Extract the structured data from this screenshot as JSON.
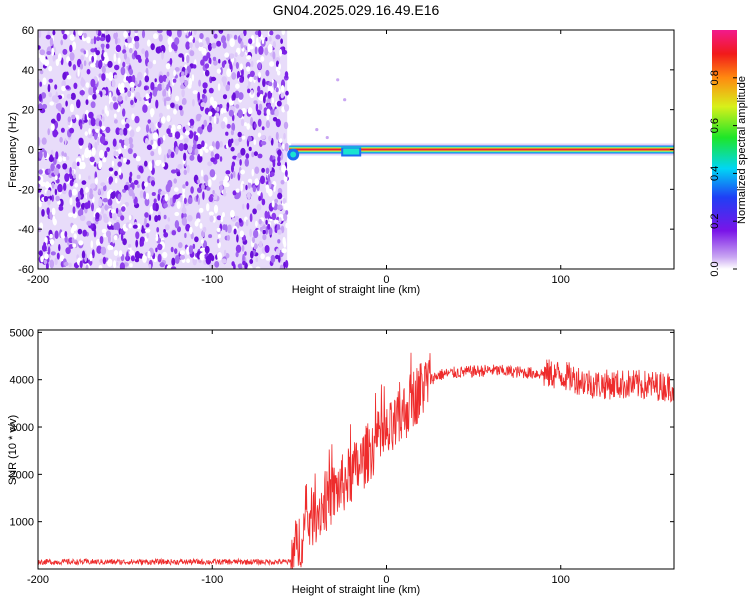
{
  "figure": {
    "title": "GN04.2025.029.16.49.E16"
  },
  "colors": {
    "snr_line": "#ee2c2c",
    "scatter_noise": "#8a2be2",
    "band_core": "#e81e3a"
  },
  "chart_data": [
    {
      "type": "heatmap",
      "title": "GN04.2025.029.16.49.E16",
      "xlabel": "Height of straight line (km)",
      "ylabel": "Frequency (Hz)",
      "xlim": [
        -200,
        165
      ],
      "ylim": [
        -60,
        60
      ],
      "x_ticks": [
        -200,
        -100,
        0,
        100
      ],
      "y_ticks": [
        -60,
        -40,
        -20,
        0,
        20,
        40,
        60
      ],
      "colorbar": {
        "label": "Normalized spectral amplitude",
        "range": [
          0,
          1
        ],
        "ticks": [
          "0.0",
          "0.2",
          "0.4",
          "0.6",
          "0.8"
        ],
        "scheme": "rainbow (violet → blue → cyan → green → yellow → red → magenta)"
      },
      "regions": [
        {
          "description": "broadband noise",
          "x_range": [
            -200,
            -57
          ],
          "freq_range": [
            -60,
            60
          ],
          "amplitude": 0.1
        },
        {
          "description": "narrow carrier band",
          "x_range": [
            -57,
            165
          ],
          "freq_center": 0,
          "amplitude": 0.95
        }
      ],
      "grid": false
    },
    {
      "type": "line",
      "xlabel": "Height of straight line (km)",
      "ylabel": "SNR (10 * v/v)",
      "xlim": [
        -200,
        165
      ],
      "ylim": [
        0,
        5050
      ],
      "x_ticks": [
        -200,
        -100,
        0,
        100
      ],
      "y_ticks": [
        1000,
        2000,
        3000,
        4000,
        5000
      ],
      "series": [
        {
          "x": [
            -200,
            -150,
            -100,
            -60,
            -55,
            -50,
            -45,
            -40,
            -35,
            -30,
            -25,
            -20,
            -15,
            -10,
            -5,
            0,
            5,
            10,
            15,
            20,
            25,
            30,
            40,
            60,
            80,
            100,
            120,
            140,
            165
          ],
          "values": [
            150,
            150,
            150,
            150,
            150,
            600,
            1000,
            1200,
            1400,
            1600,
            1800,
            2000,
            2200,
            2500,
            2700,
            2800,
            3000,
            3300,
            3600,
            3800,
            4000,
            4100,
            4150,
            4200,
            4150,
            4100,
            3900,
            3900,
            3850
          ]
        }
      ],
      "grid": false
    }
  ]
}
